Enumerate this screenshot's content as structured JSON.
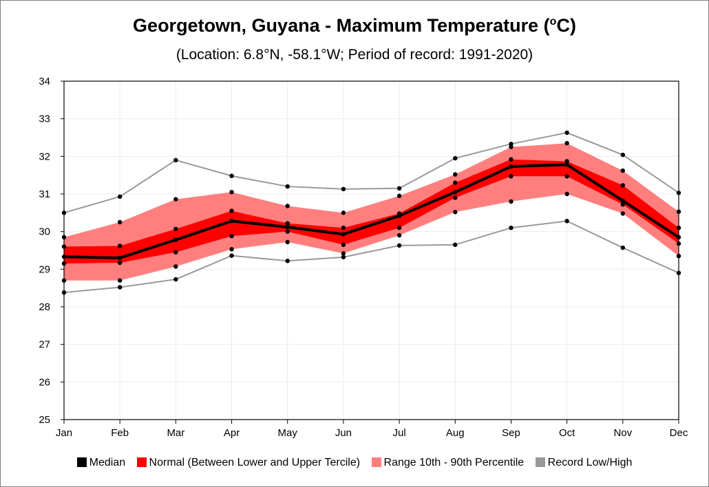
{
  "title_text": "Georgetown, Guyana - Maximum Temperature (",
  "title_sup": "o",
  "title_tail": "C)",
  "subtitle": "(Location: 6.8°N, -58.1°W; Period of record: 1991-2020)",
  "colors": {
    "median": "#000000",
    "normal": "#ff0000",
    "range": "#ff7f7f",
    "record": "#999999",
    "grid": "#ececec",
    "axis": "#000000"
  },
  "legend": [
    {
      "label": "Median",
      "color": "#000000"
    },
    {
      "label": "Normal (Between Lower and Upper Tercile)",
      "color": "#ff0000"
    },
    {
      "label": "Range 10th - 90th Percentile",
      "color": "#ff7f7f"
    },
    {
      "label": "Record Low/High",
      "color": "#999999"
    }
  ],
  "chart_data": {
    "type": "area",
    "categories": [
      "Jan",
      "Feb",
      "Mar",
      "Apr",
      "May",
      "Jun",
      "Jul",
      "Aug",
      "Sep",
      "Oct",
      "Nov",
      "Dec"
    ],
    "ylim": [
      25,
      34
    ],
    "yticks": [
      25,
      26,
      27,
      28,
      29,
      30,
      31,
      32,
      33,
      34
    ],
    "grid": true,
    "legend_position": "bottom",
    "series": [
      {
        "name": "Record Low/High",
        "kind": "record_high",
        "values": [
          30.5,
          30.93,
          31.9,
          31.48,
          31.2,
          31.13,
          31.15,
          31.95,
          32.33,
          32.63,
          32.04,
          31.03
        ]
      },
      {
        "name": "Range 10th - 90th Percentile",
        "kind": "p90",
        "values": [
          29.85,
          30.25,
          30.86,
          31.05,
          30.68,
          30.5,
          30.95,
          31.52,
          32.25,
          32.35,
          31.62,
          30.53
        ]
      },
      {
        "name": "Normal (Between Lower and Upper Tercile)",
        "kind": "upper_tercile",
        "values": [
          29.6,
          29.62,
          30.07,
          30.55,
          30.22,
          30.1,
          30.48,
          31.3,
          31.92,
          31.87,
          31.23,
          30.1
        ]
      },
      {
        "name": "Median",
        "kind": "median",
        "values": [
          29.33,
          29.3,
          29.78,
          30.28,
          30.12,
          29.93,
          30.42,
          31.05,
          31.73,
          31.78,
          30.82,
          29.85
        ]
      },
      {
        "name": "Normal (Between Lower and Upper Tercile)",
        "kind": "lower_tercile",
        "values": [
          29.15,
          29.17,
          29.45,
          29.88,
          30.0,
          29.65,
          30.1,
          30.9,
          31.47,
          31.47,
          30.72,
          29.68
        ]
      },
      {
        "name": "Range 10th - 90th Percentile",
        "kind": "p10",
        "values": [
          28.7,
          28.7,
          29.07,
          29.53,
          29.72,
          29.42,
          29.9,
          30.52,
          30.8,
          31.0,
          30.48,
          29.35
        ]
      },
      {
        "name": "Record Low/High",
        "kind": "record_low",
        "values": [
          28.38,
          28.52,
          28.73,
          29.36,
          29.22,
          29.32,
          29.63,
          29.65,
          30.1,
          30.28,
          29.57,
          28.9
        ]
      }
    ]
  }
}
